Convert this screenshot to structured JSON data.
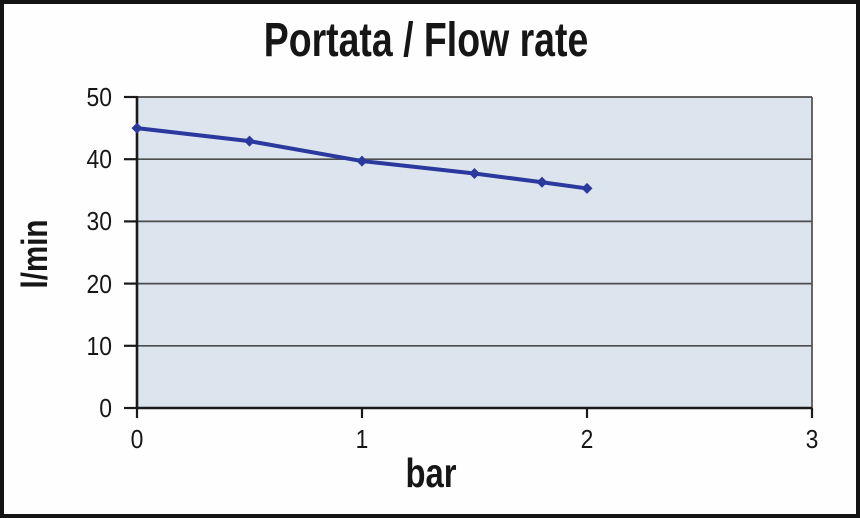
{
  "window": {
    "background_color": "#fefefe",
    "border_color": "#141414"
  },
  "chart_data": {
    "type": "line",
    "title": "Portata / Flow rate",
    "xlabel": "bar",
    "ylabel": "l/min",
    "series": [
      {
        "name": "Portata / Flow rate",
        "x": [
          0,
          0.5,
          1,
          1.5,
          1.8,
          2
        ],
        "y": [
          45,
          42.9,
          39.7,
          37.7,
          36.3,
          35.3
        ],
        "color": "#2b389d",
        "marker": "diamond",
        "line_width": 4
      }
    ],
    "xlim": [
      0,
      3
    ],
    "ylim": [
      0,
      50
    ],
    "xticks": [
      "0",
      "1",
      "2",
      "3"
    ],
    "yticks": [
      "0",
      "10",
      "20",
      "30",
      "40",
      "50"
    ],
    "grid": "horizontal-only",
    "gridline_color": "#4d4d4d",
    "axis_color": "#1a1a1a",
    "plot_background": "#dce4ee",
    "legend_position": "none"
  }
}
